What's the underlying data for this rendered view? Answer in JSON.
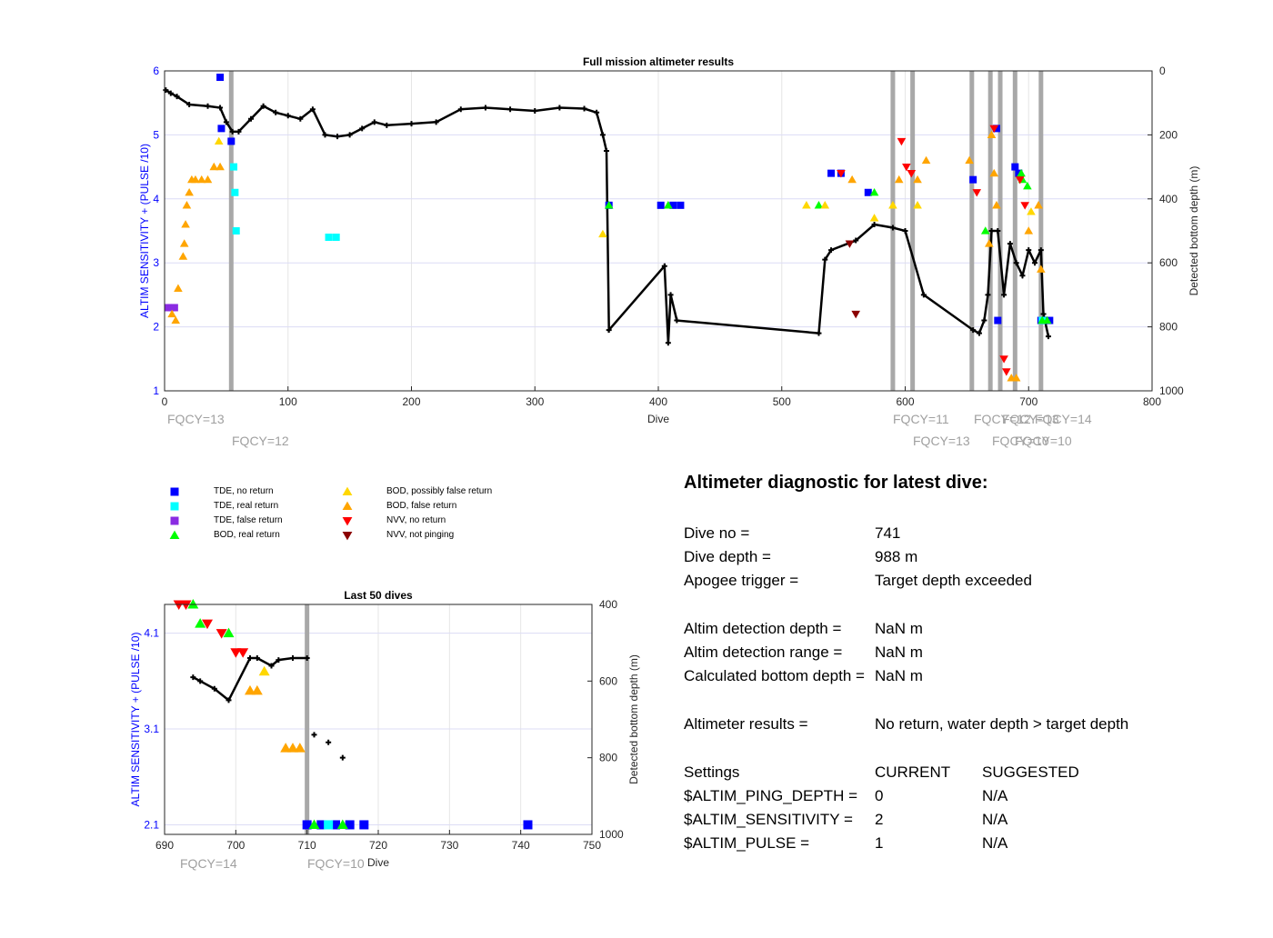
{
  "top": {
    "title": "Full mission altimeter results",
    "xlabel": "Dive",
    "ylabel_left": "ALTIM SENSITIVITY + (PULSE /10)",
    "ylabel_right": "Detected bottom depth (m)",
    "xticks": [
      "0",
      "100",
      "200",
      "300",
      "400",
      "500",
      "600",
      "700",
      "800"
    ],
    "yticks_left": [
      "1",
      "2",
      "3",
      "4",
      "5",
      "6"
    ],
    "yticks_right": [
      "0",
      "200",
      "400",
      "600",
      "800",
      "1000"
    ],
    "fqcy": [
      "FQCY=13",
      "FQCY=12",
      "FQCY=11",
      "FQCY=13",
      "FQCY=12",
      "FQCY=10",
      "FQCY=13",
      "FQCY=10",
      "FQCY=14"
    ]
  },
  "bottom": {
    "title": "Last 50 dives",
    "xlabel": "Dive",
    "ylabel_left": "ALTIM SENSITIVITY + (PULSE /10)",
    "ylabel_right": "Detected bottom depth (m)",
    "xticks": [
      "690",
      "700",
      "710",
      "720",
      "730",
      "740",
      "750"
    ],
    "yticks_left": [
      "2.1",
      "3.1",
      "4.1"
    ],
    "yticks_right": [
      "400",
      "600",
      "800",
      "1000"
    ],
    "fqcy": [
      "FQCY=14",
      "FQCY=10"
    ]
  },
  "legend": [
    {
      "label": "TDE, no return",
      "color": "#0000ff",
      "shape": "square"
    },
    {
      "label": "TDE, real return",
      "color": "#00ffff",
      "shape": "square"
    },
    {
      "label": "TDE, false return",
      "color": "#8a2be2",
      "shape": "square"
    },
    {
      "label": "BOD, real return",
      "color": "#00ff00",
      "shape": "triangle-up"
    },
    {
      "label": "BOD, possibly false return",
      "color": "#ffd700",
      "shape": "triangle-up"
    },
    {
      "label": "BOD, false return",
      "color": "#ffa500",
      "shape": "triangle-up"
    },
    {
      "label": "NVV, no return",
      "color": "#ff0000",
      "shape": "triangle-down"
    },
    {
      "label": "NVV, not pinging",
      "color": "#8b0000",
      "shape": "triangle-down"
    }
  ],
  "diagnostic": {
    "heading": "Altimeter diagnostic for latest dive:",
    "rows": [
      {
        "k": "Dive no =",
        "v": "741"
      },
      {
        "k": "Dive depth =",
        "v": "988 m"
      },
      {
        "k": "Apogee trigger =",
        "v": "Target depth exceeded"
      },
      {
        "k": "Altim detection depth =",
        "v": "NaN m"
      },
      {
        "k": "Altim detection range =",
        "v": "NaN m"
      },
      {
        "k": "Calculated bottom depth =",
        "v": "NaN m"
      },
      {
        "k": "Altimeter results =",
        "v": "No return, water depth > target depth"
      }
    ],
    "settings_header": {
      "k": "Settings",
      "cur": "CURRENT",
      "sug": "SUGGESTED"
    },
    "settings": [
      {
        "k": "$ALTIM_PING_DEPTH =",
        "cur": "0",
        "sug": "N/A"
      },
      {
        "k": "$ALTIM_SENSITIVITY =",
        "cur": "2",
        "sug": "N/A"
      },
      {
        "k": "$ALTIM_PULSE =",
        "cur": "1",
        "sug": "N/A"
      }
    ]
  },
  "chart_data": [
    {
      "type": "scatter",
      "title": "Full mission altimeter results",
      "xlabel": "Dive",
      "ylabel": "ALTIM SENSITIVITY + (PULSE /10)",
      "ylabel_right": "Detected bottom depth (m)",
      "xlim": [
        0,
        800
      ],
      "ylim": [
        1,
        6
      ],
      "ylim_right": [
        0,
        1000
      ],
      "fqcy_change_dives": [
        54,
        590,
        606,
        654,
        669,
        677,
        689,
        710
      ],
      "series": [
        {
          "name": "TDE, no return",
          "points": [
            [
              45,
              5.9
            ],
            [
              46,
              5.1
            ],
            [
              54,
              4.9
            ],
            [
              360,
              3.9
            ],
            [
              402,
              3.9
            ],
            [
              412,
              3.9
            ],
            [
              418,
              3.9
            ],
            [
              540,
              4.4
            ],
            [
              548,
              4.4
            ],
            [
              570,
              4.1
            ],
            [
              655,
              4.3
            ],
            [
              674,
              5.1
            ],
            [
              689,
              4.5
            ],
            [
              692,
              4.4
            ],
            [
              675,
              2.1
            ],
            [
              710,
              2.1
            ],
            [
              713,
              2.1
            ],
            [
              717,
              2.1
            ]
          ]
        },
        {
          "name": "TDE, real return",
          "points": [
            [
              56,
              4.5
            ],
            [
              57,
              4.1
            ],
            [
              58,
              3.5
            ],
            [
              133,
              3.4
            ],
            [
              139,
              3.4
            ],
            [
              711,
              2.1
            ]
          ]
        },
        {
          "name": "TDE, false return",
          "points": [
            [
              3,
              2.3
            ],
            [
              6,
              2.3
            ],
            [
              8,
              2.3
            ]
          ]
        },
        {
          "name": "BOD, real return",
          "points": [
            [
              360,
              3.9
            ],
            [
              408,
              3.9
            ],
            [
              530,
              3.9
            ],
            [
              575,
              4.1
            ],
            [
              665,
              3.5
            ],
            [
              694,
              4.4
            ],
            [
              695,
              4.3
            ],
            [
              699,
              4.2
            ],
            [
              711,
              2.1
            ],
            [
              715,
              2.1
            ]
          ]
        },
        {
          "name": "BOD, possibly false return",
          "points": [
            [
              44,
              4.9
            ],
            [
              355,
              3.45
            ],
            [
              520,
              3.9
            ],
            [
              535,
              3.9
            ],
            [
              575,
              3.7
            ],
            [
              590,
              3.9
            ],
            [
              610,
              3.9
            ],
            [
              702,
              3.8
            ]
          ]
        },
        {
          "name": "BOD, false return",
          "points": [
            [
              6,
              2.2
            ],
            [
              9,
              2.1
            ],
            [
              11,
              2.6
            ],
            [
              15,
              3.1
            ],
            [
              16,
              3.3
            ],
            [
              17,
              3.6
            ],
            [
              18,
              3.9
            ],
            [
              20,
              4.1
            ],
            [
              22,
              4.3
            ],
            [
              25,
              4.3
            ],
            [
              30,
              4.3
            ],
            [
              35,
              4.3
            ],
            [
              40,
              4.5
            ],
            [
              45,
              4.5
            ],
            [
              557,
              4.3
            ],
            [
              595,
              4.3
            ],
            [
              610,
              4.3
            ],
            [
              617,
              4.6
            ],
            [
              652,
              4.6
            ],
            [
              670,
              5.0
            ],
            [
              672,
              4.4
            ],
            [
              674,
              3.9
            ],
            [
              668,
              3.3
            ],
            [
              700,
              3.5
            ],
            [
              708,
              3.9
            ],
            [
              710,
              2.9
            ],
            [
              686,
              1.2
            ],
            [
              690,
              1.2
            ]
          ]
        },
        {
          "name": "NVV, no return",
          "points": [
            [
              548,
              4.4
            ],
            [
              597,
              4.9
            ],
            [
              601,
              4.5
            ],
            [
              605,
              4.4
            ],
            [
              658,
              4.1
            ],
            [
              672,
              5.1
            ],
            [
              693,
              4.3
            ],
            [
              697,
              3.9
            ],
            [
              680,
              1.5
            ],
            [
              682,
              1.3
            ]
          ]
        },
        {
          "name": "NVV, not pinging",
          "points": [
            [
              560,
              2.2
            ],
            [
              555,
              3.3
            ]
          ]
        }
      ],
      "depth_track": [
        [
          1,
          60
        ],
        [
          5,
          70
        ],
        [
          10,
          80
        ],
        [
          20,
          105
        ],
        [
          35,
          110
        ],
        [
          45,
          115
        ],
        [
          50,
          160
        ],
        [
          55,
          190
        ],
        [
          60,
          190
        ],
        [
          70,
          150
        ],
        [
          80,
          110
        ],
        [
          90,
          130
        ],
        [
          100,
          140
        ],
        [
          110,
          150
        ],
        [
          120,
          120
        ],
        [
          130,
          200
        ],
        [
          140,
          205
        ],
        [
          150,
          200
        ],
        [
          160,
          180
        ],
        [
          170,
          160
        ],
        [
          180,
          170
        ],
        [
          200,
          165
        ],
        [
          220,
          160
        ],
        [
          240,
          120
        ],
        [
          260,
          115
        ],
        [
          280,
          120
        ],
        [
          300,
          125
        ],
        [
          320,
          115
        ],
        [
          340,
          118
        ],
        [
          350,
          130
        ],
        [
          355,
          200
        ],
        [
          358,
          250
        ],
        [
          360,
          810
        ],
        [
          405,
          610
        ],
        [
          408,
          850
        ],
        [
          410,
          700
        ],
        [
          415,
          780
        ],
        [
          530,
          820
        ],
        [
          535,
          590
        ],
        [
          540,
          560
        ],
        [
          560,
          530
        ],
        [
          575,
          480
        ],
        [
          590,
          490
        ],
        [
          600,
          500
        ],
        [
          615,
          700
        ],
        [
          655,
          810
        ],
        [
          660,
          820
        ],
        [
          664,
          780
        ],
        [
          667,
          700
        ],
        [
          670,
          500
        ],
        [
          675,
          500
        ],
        [
          680,
          700
        ],
        [
          685,
          540
        ],
        [
          690,
          600
        ],
        [
          695,
          640
        ],
        [
          700,
          560
        ],
        [
          705,
          600
        ],
        [
          710,
          560
        ],
        [
          712,
          760
        ],
        [
          716,
          830
        ]
      ]
    },
    {
      "type": "scatter",
      "title": "Last 50 dives",
      "xlabel": "Dive",
      "ylabel": "ALTIM SENSITIVITY + (PULSE /10)",
      "ylabel_right": "Detected bottom depth (m)",
      "xlim": [
        690,
        750
      ],
      "ylim": [
        2.0,
        4.4
      ],
      "ylim_right": [
        400,
        1000
      ],
      "fqcy_change_dives": [
        710
      ],
      "series": [
        {
          "name": "TDE, no return",
          "points": [
            [
              710,
              2.1
            ],
            [
              712,
              2.1
            ],
            [
              714,
              2.1
            ],
            [
              716,
              2.1
            ],
            [
              718,
              2.1
            ],
            [
              741,
              2.1
            ]
          ]
        },
        {
          "name": "TDE, real return",
          "points": [
            [
              713,
              2.1
            ]
          ]
        },
        {
          "name": "BOD, real return",
          "points": [
            [
              694,
              4.4
            ],
            [
              695,
              4.2
            ],
            [
              699,
              4.1
            ],
            [
              711,
              2.1
            ],
            [
              715,
              2.1
            ]
          ]
        },
        {
          "name": "BOD, possibly false return",
          "points": [
            [
              704,
              3.7
            ]
          ]
        },
        {
          "name": "BOD, false return",
          "points": [
            [
              703,
              3.5
            ],
            [
              702,
              3.5
            ],
            [
              707,
              2.9
            ],
            [
              708,
              2.9
            ],
            [
              709,
              2.9
            ]
          ]
        },
        {
          "name": "NVV, no return",
          "points": [
            [
              692,
              4.4
            ],
            [
              693,
              4.4
            ],
            [
              696,
              4.2
            ],
            [
              698,
              4.1
            ],
            [
              700,
              3.9
            ],
            [
              701,
              3.9
            ]
          ]
        }
      ],
      "depth_track": [
        [
          694,
          590
        ],
        [
          695,
          600
        ],
        [
          697,
          620
        ],
        [
          699,
          650
        ],
        [
          702,
          540
        ],
        [
          703,
          540
        ],
        [
          705,
          560
        ],
        [
          706,
          545
        ],
        [
          708,
          540
        ],
        [
          710,
          540
        ]
      ],
      "depth_points": [
        [
          711,
          740
        ],
        [
          713,
          760
        ],
        [
          715,
          800
        ]
      ]
    }
  ]
}
